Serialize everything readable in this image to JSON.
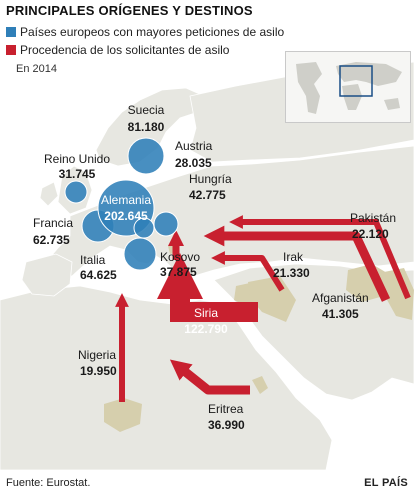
{
  "title": "PRINCIPALES ORÍGENES Y DESTINOS",
  "legend": {
    "destinations_label": "Países europeos con mayores peticiones de asilo",
    "origins_label": "Procedencia de los solicitantes de asilo",
    "year_label": "En 2014"
  },
  "colors": {
    "destination": "#2f7fb8",
    "origin": "#c8202f",
    "land": "#e7e7e1",
    "water": "#ffffff",
    "origin_country": "#d6cfad"
  },
  "destinations": [
    {
      "name": "Suecia",
      "value": "81.180"
    },
    {
      "name": "Austria",
      "value": "28.035"
    },
    {
      "name": "Reino Unido",
      "value": "31.745"
    },
    {
      "name": "Hungría",
      "value": "42.775"
    },
    {
      "name": "Alemania",
      "value": "202.645"
    },
    {
      "name": "Francia",
      "value": "62.735"
    },
    {
      "name": "Italia",
      "value": "64.625"
    }
  ],
  "origins": [
    {
      "name": "Pakistán",
      "value": "22.120"
    },
    {
      "name": "Irak",
      "value": "21.330"
    },
    {
      "name": "Afganistán",
      "value": "41.305"
    },
    {
      "name": "Kosovo",
      "value": "37.875"
    },
    {
      "name": "Siria",
      "value": "122.790"
    },
    {
      "name": "Nigeria",
      "value": "19.950"
    },
    {
      "name": "Eritrea",
      "value": "36.990"
    }
  ],
  "inset": {
    "icon": "world-locator-map-icon"
  },
  "footer": {
    "source": "Fuente: Eurostat.",
    "brand": "EL PAÍS"
  }
}
